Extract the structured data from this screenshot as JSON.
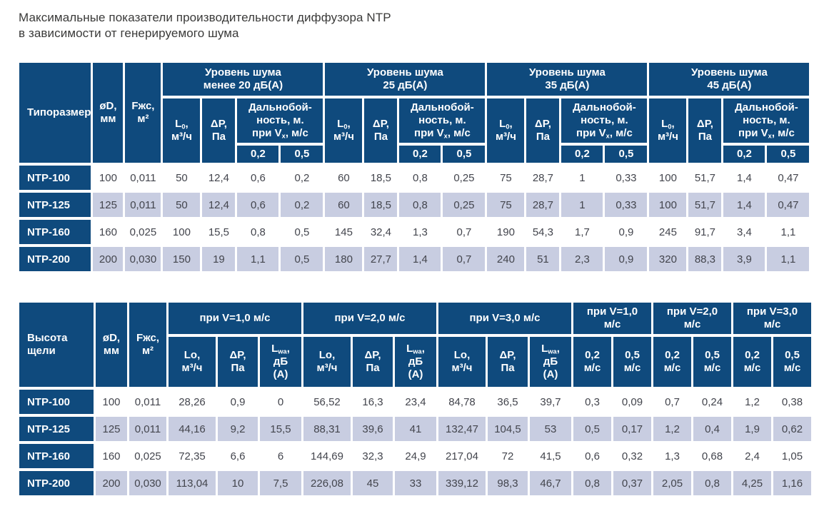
{
  "title": {
    "line1": "Максимальные показатели производительности диффузора NTP",
    "line2": "в зависимости от генерируемого шума"
  },
  "colors": {
    "header_bg": "#0f4a7d",
    "shaded_row_bg": "#c8cde1",
    "plain_row_bg": "#ffffff",
    "header_text": "#ffffff",
    "cell_text": "#43454d",
    "title_text": "#3a3a39"
  },
  "table1": {
    "corner": {
      "typorazmer": "Типоразмер",
      "diameter_html": "øD,<br>мм",
      "area_html": "Fжс,<br>м²"
    },
    "groups": [
      {
        "title_html": "Уровень шума<br>менее 20 дБ(А)"
      },
      {
        "title_html": "Уровень шума<br>25 дБ(А)"
      },
      {
        "title_html": "Уровень шума<br>35 дБ(А)"
      },
      {
        "title_html": "Уровень шума<br>45 дБ(А)"
      }
    ],
    "sub": {
      "l0_html": "L<sub>0</sub>,<br>м³/ч",
      "dp_html": "ΔP,<br>Па",
      "range_html": "Дальнобой-<br>ность, м.<br>при V<sub>x</sub>, м/с",
      "v02": "0,2",
      "v05": "0,5"
    },
    "rows": [
      {
        "label": "NTP-100",
        "values": [
          "100",
          "0,011",
          "50",
          "12,4",
          "0,6",
          "0,2",
          "60",
          "18,5",
          "0,8",
          "0,25",
          "75",
          "28,7",
          "1",
          "0,33",
          "100",
          "51,7",
          "1,4",
          "0,47"
        ]
      },
      {
        "label": "NTP-125",
        "values": [
          "125",
          "0,011",
          "50",
          "12,4",
          "0,6",
          "0,2",
          "60",
          "18,5",
          "0,8",
          "0,25",
          "75",
          "28,7",
          "1",
          "0,33",
          "100",
          "51,7",
          "1,4",
          "0,47"
        ]
      },
      {
        "label": "NTP-160",
        "values": [
          "160",
          "0,025",
          "100",
          "15,5",
          "0,8",
          "0,5",
          "145",
          "32,4",
          "1,3",
          "0,7",
          "190",
          "54,3",
          "1,7",
          "0,9",
          "245",
          "91,7",
          "3,4",
          "1,1"
        ]
      },
      {
        "label": "NTP-200",
        "values": [
          "200",
          "0,030",
          "150",
          "19",
          "1,1",
          "0,5",
          "180",
          "27,7",
          "1,4",
          "0,7",
          "240",
          "51",
          "2,3",
          "0,9",
          "320",
          "88,3",
          "3,9",
          "1,1"
        ]
      }
    ]
  },
  "table2": {
    "corner": {
      "height_html": "Высота<br>щели",
      "diameter_html": "øD,<br>мм",
      "area_html": "Fжс,<br>м²"
    },
    "velocity_groups": [
      {
        "title": "при V=1,0 м/с"
      },
      {
        "title": "при V=2,0 м/с"
      },
      {
        "title": "при V=3,0 м/с"
      }
    ],
    "range_groups": [
      {
        "title_html": "при V=1,0<br>м/с"
      },
      {
        "title_html": "при V=2,0<br>м/с"
      },
      {
        "title_html": "при V=3,0<br>м/с"
      }
    ],
    "sub": {
      "lo_html": "Lo,<br>м³/ч",
      "dp_html": "ΔP,<br>Па",
      "lwa_html": "L<sub>wa</sub>,<br>дБ<br>(А)",
      "v02_html": "0,2<br>м/с",
      "v05_html": "0,5<br>м/с"
    },
    "rows": [
      {
        "label": "NTP-100",
        "values": [
          "100",
          "0,011",
          "28,26",
          "0,9",
          "0",
          "56,52",
          "16,3",
          "23,4",
          "84,78",
          "36,5",
          "39,7",
          "0,3",
          "0,09",
          "0,7",
          "0,24",
          "1,2",
          "0,38"
        ]
      },
      {
        "label": "NTP-125",
        "values": [
          "125",
          "0,011",
          "44,16",
          "9,2",
          "15,5",
          "88,31",
          "39,6",
          "41",
          "132,47",
          "104,5",
          "53",
          "0,5",
          "0,17",
          "1,2",
          "0,4",
          "1,9",
          "0,62"
        ]
      },
      {
        "label": "NTP-160",
        "values": [
          "160",
          "0,025",
          "72,35",
          "6,6",
          "6",
          "144,69",
          "32,3",
          "24,9",
          "217,04",
          "72",
          "41,5",
          "0,6",
          "0,32",
          "1,3",
          "0,68",
          "2,4",
          "1,05"
        ]
      },
      {
        "label": "NTP-200",
        "values": [
          "200",
          "0,030",
          "113,04",
          "10",
          "7,5",
          "226,08",
          "45",
          "33",
          "339,12",
          "98,3",
          "46,7",
          "0,8",
          "0,37",
          "2,05",
          "0,8",
          "4,25",
          "1,16"
        ]
      }
    ]
  }
}
